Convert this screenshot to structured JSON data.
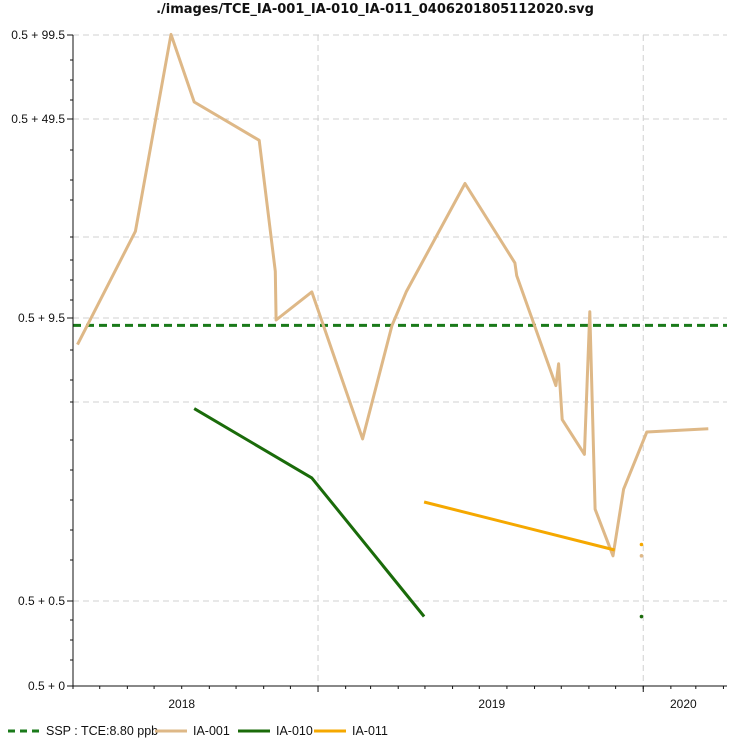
{
  "chart_data": {
    "type": "line",
    "title": "./images/TCE_IA-001_IA-010_IA-011_0406201805112020.svg",
    "xlabel": "",
    "ylabel": "",
    "y_scale": "log",
    "x_ticks": [
      "2018",
      "2019",
      "2020"
    ],
    "y_ticks": [
      "0.5 + 99.5",
      "0.5 + 49.5",
      "0.5 + 9.5",
      "0.5 + 0.5",
      "0.5 + 0"
    ],
    "grid": true,
    "legend_position": "bottom",
    "reference_line": {
      "name": "SSP : TCE:8.80 ppb",
      "value": 8.8,
      "color": "#1a7a1a",
      "style": "dashed"
    },
    "series": [
      {
        "name": "IA-001",
        "color": "#deb887",
        "points": [
          {
            "x": "2017-04-06",
            "y": 7.2
          },
          {
            "x": "2017-06-10",
            "y": 19.5
          },
          {
            "x": "2017-07-20",
            "y": 100
          },
          {
            "x": "2017-08-15",
            "y": 57
          },
          {
            "x": "2017-10-27",
            "y": 41.5
          },
          {
            "x": "2017-11-14",
            "y": 14
          },
          {
            "x": "2017-11-15",
            "y": 9.3
          },
          {
            "x": "2017-12-25",
            "y": 11.8
          },
          {
            "x": "2018-02-20",
            "y": 2.7
          },
          {
            "x": "2018-03-25",
            "y": 8.8
          },
          {
            "x": "2018-04-10",
            "y": 11.8
          },
          {
            "x": "2018-06-15",
            "y": 29
          },
          {
            "x": "2018-08-10",
            "y": 15
          },
          {
            "x": "2018-08-12",
            "y": 13.5
          },
          {
            "x": "2018-09-25",
            "y": 4.7
          },
          {
            "x": "2018-09-28",
            "y": 5.9
          },
          {
            "x": "2018-10-02",
            "y": 3.3
          },
          {
            "x": "2018-10-27",
            "y": 2.3
          },
          {
            "x": "2018-11-02",
            "y": 10
          },
          {
            "x": "2018-11-08",
            "y": 1.3
          },
          {
            "x": "2018-11-28",
            "y": 0.8
          },
          {
            "x": "2018-12-10",
            "y": 1.6
          },
          {
            "x": "2019-01-05",
            "y": 2.9
          },
          {
            "x": "2019-03-15",
            "y": 3.0
          }
        ],
        "extra_points": [
          {
            "x": "2018-12-30",
            "y": 0.8
          }
        ]
      },
      {
        "name": "IA-010",
        "color": "#1a6b0a",
        "points": [
          {
            "x": "2017-08-15",
            "y": 3.7
          },
          {
            "x": "2017-12-25",
            "y": 1.8
          },
          {
            "x": "2018-04-30",
            "y": 0.48
          }
        ],
        "extra_points": [
          {
            "x": "2018-12-30",
            "y": 0.48
          }
        ]
      },
      {
        "name": "IA-011",
        "color": "#f5a800",
        "points": [
          {
            "x": "2018-04-30",
            "y": 1.4
          },
          {
            "x": "2018-11-30",
            "y": 0.85
          }
        ],
        "extra_points": [
          {
            "x": "2018-12-30",
            "y": 0.9
          }
        ]
      }
    ]
  }
}
